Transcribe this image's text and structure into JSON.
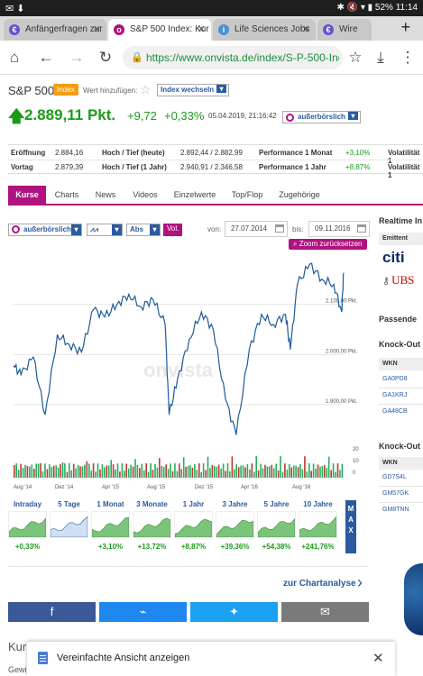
{
  "statusbar": {
    "left_icons": "✉ ⬇",
    "battery": "52%",
    "time": "11:14",
    "right_icons": "✱ 🔇 ▾ ▮"
  },
  "tabs": [
    {
      "title": "Anfängerfragen zur",
      "icon": "euro-icon",
      "icon_glyph": "€",
      "color": "#6a4fd1"
    },
    {
      "title": "S&P 500 Index: Kur",
      "icon": "onvista-icon",
      "icon_glyph": "o",
      "color": "#b0137f"
    },
    {
      "title": "Life Sciences Jobs",
      "icon": "info-icon",
      "icon_glyph": "i",
      "color": "#4a90d9"
    },
    {
      "title": "Wire",
      "icon": "euro-icon",
      "icon_glyph": "€",
      "color": "#6a4fd1"
    }
  ],
  "browser": {
    "url": "https://www.onvista.de/index/S-P-500-Index-4359526"
  },
  "stock": {
    "name": "S&P 500",
    "badge": "Index",
    "watch_label": "Wert hinzufügen:",
    "switch_label": "Index wechseln",
    "price": "2.889,11 Pkt.",
    "change": "+9,72",
    "change_pct": "+0,33%",
    "timestamp": "05.04.2019, 21:16:42",
    "exchange": "außerbörslich"
  },
  "kv": [
    {
      "k": "Eröffnung",
      "v": "2.884,16",
      "k2": "Hoch / Tief (heute)",
      "v2": "2.892,44 / 2.882,99",
      "k3": "Performance 1 Monat",
      "v3": "+3,10%",
      "k4": "Volatilität 1"
    },
    {
      "k": "Vortag",
      "v": "2.879,39",
      "k2": "Hoch / Tief (1 Jahr)",
      "v2": "2.940,91 / 2.346,58",
      "k3": "Performance 1 Jahr",
      "v3": "+8,87%",
      "k4": "Volatilität 1"
    }
  ],
  "page_tabs": [
    "Kurse",
    "Charts",
    "News",
    "Videos",
    "Einzelwerte",
    "Top/Flop",
    "Zugehörige"
  ],
  "chart_controls": {
    "exchange": "außerbörslich",
    "chart_style": "⩘⩘",
    "scale": "Abs",
    "vol": "Vol.",
    "from_label": "von:",
    "from": "27.07.2014",
    "to_label": "bis:",
    "to": "09.11.2016",
    "reset_zoom": "Zoom zurücksetzen"
  },
  "chart_data": {
    "type": "line",
    "title": "",
    "watermark": "onvista",
    "x_ticks": [
      "Aug '14",
      "Dez '14",
      "Apr '15",
      "Aug '15",
      "Dez '15",
      "Apr '16",
      "Aug '16"
    ],
    "y_ticks": [
      "2.100,00 Pkt.",
      "2.000,00 Pkt.",
      "1.900,00 Pkt."
    ],
    "ylim": [
      1830,
      2200
    ],
    "y_tick_values": [
      2100,
      2000,
      1900
    ],
    "x": [
      "2014-07-27",
      "2014-08-15",
      "2014-09-15",
      "2014-10-15",
      "2014-11-15",
      "2014-12-15",
      "2015-01-15",
      "2015-02-15",
      "2015-03-15",
      "2015-04-15",
      "2015-05-15",
      "2015-06-15",
      "2015-07-15",
      "2015-08-15",
      "2015-08-25",
      "2015-09-15",
      "2015-10-15",
      "2015-11-15",
      "2015-12-15",
      "2016-01-15",
      "2016-02-11",
      "2016-03-15",
      "2016-04-15",
      "2016-05-15",
      "2016-06-15",
      "2016-06-27",
      "2016-07-15",
      "2016-08-15",
      "2016-09-15",
      "2016-10-15",
      "2016-11-04",
      "2016-11-09"
    ],
    "values": [
      1978,
      1960,
      1995,
      1880,
      2040,
      2020,
      2005,
      2090,
      2075,
      2100,
      2120,
      2095,
      2110,
      2060,
      1880,
      1950,
      2030,
      2085,
      2050,
      1910,
      1840,
      2010,
      2080,
      2060,
      2080,
      2010,
      2140,
      2180,
      2150,
      2140,
      2085,
      2163
    ],
    "volume_ticks": [
      "20",
      "10",
      "0"
    ],
    "volume_ylim": [
      0,
      20
    ]
  },
  "periods": [
    {
      "label": "Intraday",
      "pct": "+0,33%"
    },
    {
      "label": "5 Tage",
      "pct": ""
    },
    {
      "label": "1 Monat",
      "pct": "+3,10%"
    },
    {
      "label": "3 Monate",
      "pct": "+13,72%"
    },
    {
      "label": "1 Jahr",
      "pct": "+8,87%"
    },
    {
      "label": "3 Jahre",
      "pct": "+39,36%"
    },
    {
      "label": "5 Jahre",
      "pct": "+54,38%"
    },
    {
      "label": "10 Jahre",
      "pct": "+241,76%"
    }
  ],
  "max_label": "MAX",
  "analysis_link": "zur Chartanalyse",
  "share": [
    {
      "name": "facebook",
      "glyph": "f",
      "color": "#3b5998"
    },
    {
      "name": "messenger",
      "glyph": "⌁",
      "color": "#1e88f0"
    },
    {
      "name": "twitter",
      "glyph": "✦",
      "color": "#1da1f2"
    },
    {
      "name": "email",
      "glyph": "✉",
      "color": "#7a7a7a"
    }
  ],
  "sidebar": {
    "realtime": "Realtime In",
    "emittent": "Emittent",
    "issuer1": "citi",
    "issuer2": "UBS",
    "passende": "Passende",
    "ko1": "Knock-Out",
    "wkn": "WKN",
    "list1": [
      "GA0PD8",
      "GA1KRJ",
      "GA48CB"
    ],
    "ko2": "Knock-Out",
    "list2": [
      "GD7S4L",
      "GM57GK",
      "GM8TNN"
    ]
  },
  "below": {
    "kurs": "Kurs",
    "gewi": "Gewi"
  },
  "snackbar": {
    "text": "Vereinfachte Ansicht anzeigen",
    "close": "✕"
  }
}
